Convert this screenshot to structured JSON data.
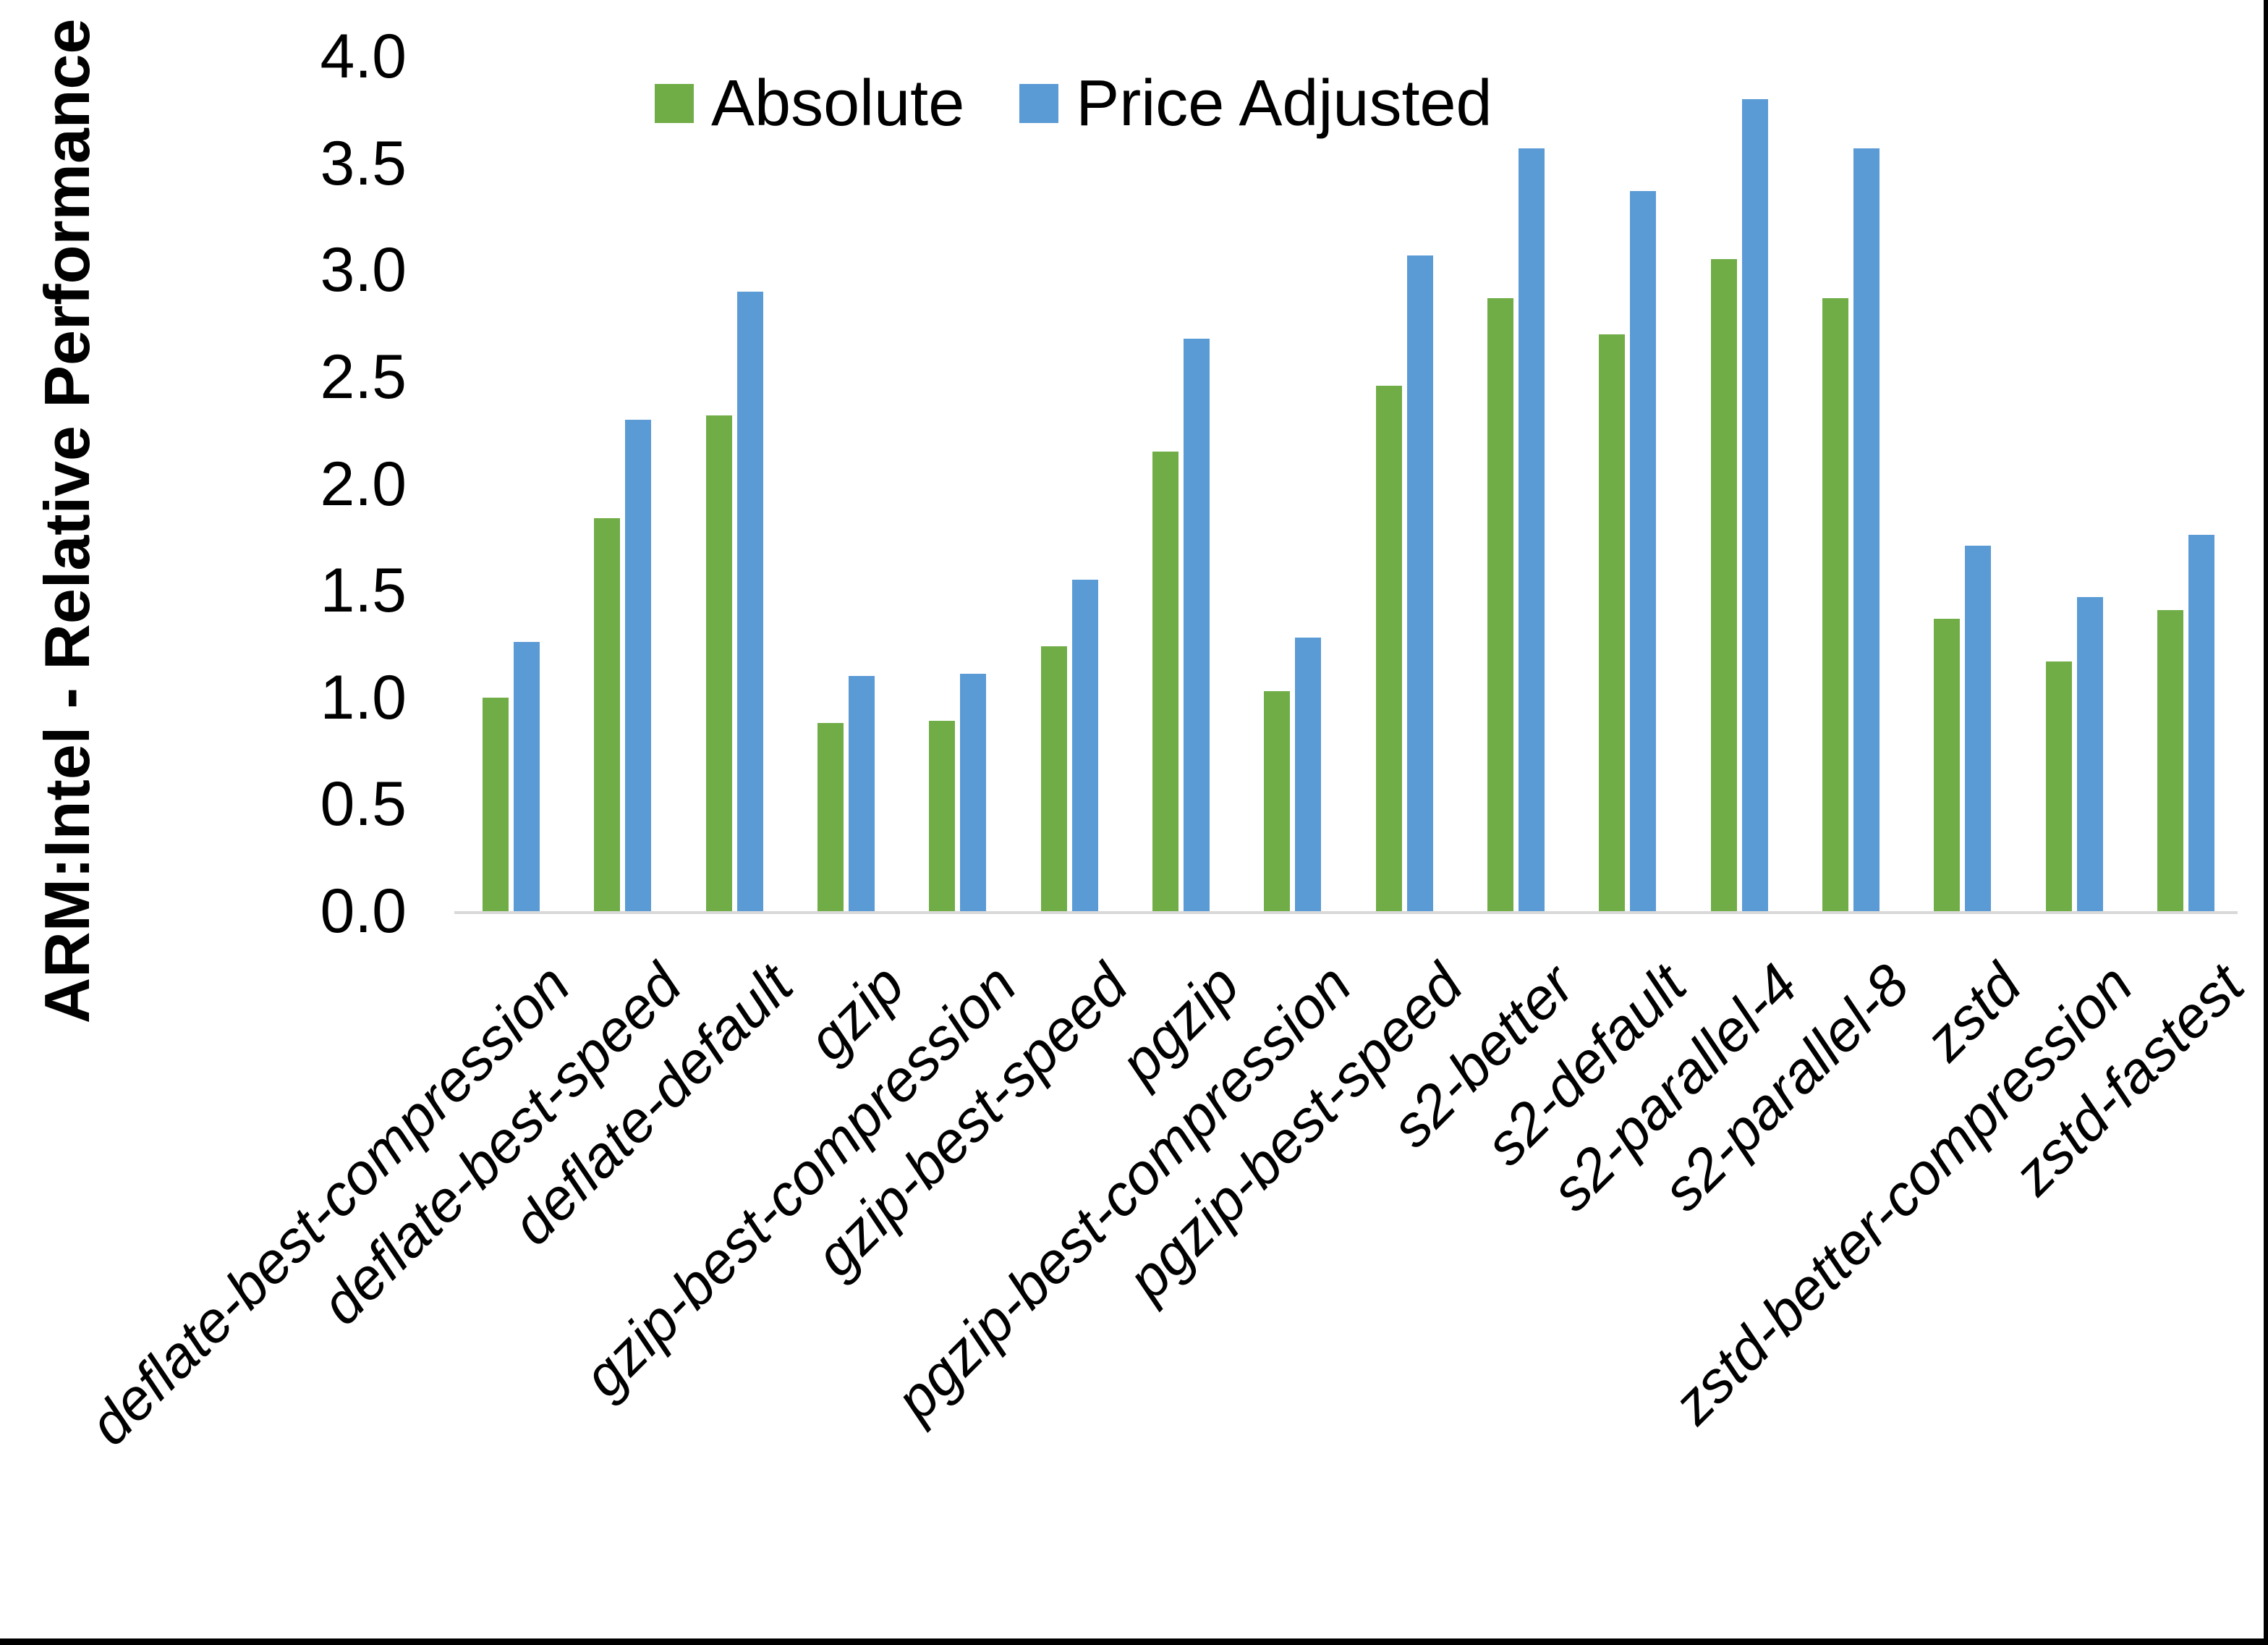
{
  "colors": {
    "absolute": "#70AD47",
    "price_adjusted": "#5B9BD5",
    "axis_line": "#D9D9D9",
    "text": "#000000",
    "background": "#FFFFFF",
    "frame": "#000000"
  },
  "chart_data": {
    "type": "bar",
    "title": "",
    "ylabel": "ARM:Intel - Relative Performance",
    "xlabel": "",
    "ylim": [
      0.0,
      4.0
    ],
    "ytick_labels": [
      "0.0",
      "0.5",
      "1.0",
      "1.5",
      "2.0",
      "2.5",
      "3.0",
      "3.5",
      "4.0"
    ],
    "grid": false,
    "legend_position": "top-center",
    "categories": [
      "deflate-best-compression",
      "deflate-best-speed",
      "deflate-default",
      "gzip",
      "gzip-best-compression",
      "gzip-best-speed",
      "pgzip",
      "pgzip-best-compression",
      "pgzip-best-speed",
      "s2-better",
      "s2-default",
      "s2-parallel-4",
      "s2-parallel-8",
      "zstd",
      "zstd-better-compression",
      "zstd-fastest"
    ],
    "series": [
      {
        "name": "Absolute",
        "color": "#70AD47",
        "values": [
          1.0,
          1.84,
          2.32,
          0.88,
          0.89,
          1.24,
          2.15,
          1.03,
          2.46,
          2.87,
          2.7,
          3.05,
          2.87,
          1.37,
          1.17,
          1.41
        ]
      },
      {
        "name": "Price Adjusted",
        "color": "#5B9BD5",
        "values": [
          1.26,
          2.3,
          2.9,
          1.1,
          1.11,
          1.55,
          2.68,
          1.28,
          3.07,
          3.57,
          3.37,
          3.8,
          3.57,
          1.71,
          1.47,
          1.76
        ]
      }
    ]
  }
}
